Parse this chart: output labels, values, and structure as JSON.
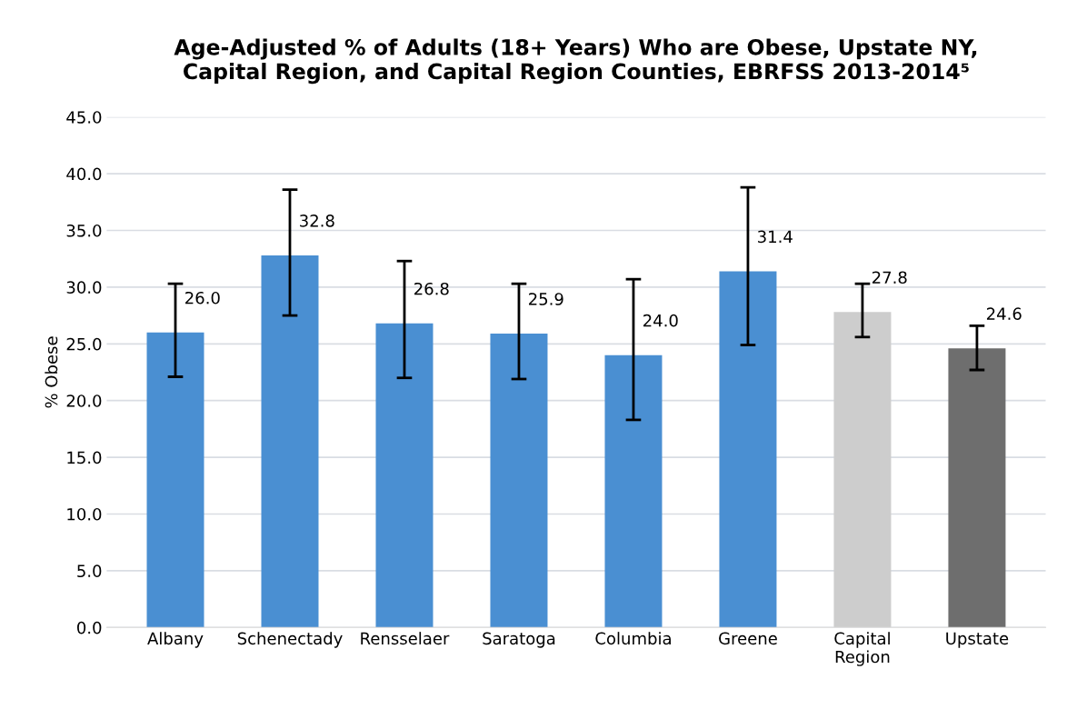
{
  "chart_data": {
    "type": "bar",
    "title": "Age-Adjusted % of Adults (18+ Years) Who are Obese, Upstate NY,\nCapital Region, and Capital Region Counties, EBRFSS 2013-2014⁵",
    "ylabel": "% Obese",
    "categories": [
      "Albany",
      "Schenectady",
      "Rensselaer",
      "Saratoga",
      "Columbia",
      "Greene",
      "Capital\nRegion",
      "Upstate"
    ],
    "values": [
      26.0,
      32.8,
      26.8,
      25.9,
      24.0,
      31.4,
      27.8,
      24.6
    ],
    "colors": [
      "#4a8fd2",
      "#4a8fd2",
      "#4a8fd2",
      "#4a8fd2",
      "#4a8fd2",
      "#4a8fd2",
      "#cdcdcd",
      "#6e6e6e"
    ],
    "errors": [
      [
        22.1,
        30.3
      ],
      [
        27.5,
        38.6
      ],
      [
        22.0,
        32.3
      ],
      [
        21.9,
        30.3
      ],
      [
        18.3,
        30.7
      ],
      [
        24.9,
        38.8
      ],
      [
        25.6,
        30.3
      ],
      [
        22.7,
        26.6
      ]
    ],
    "value_labels": [
      "26.0",
      "32.8",
      "26.8",
      "25.9",
      "24.0",
      "31.4",
      "27.8",
      "24.6"
    ],
    "ylim": [
      0,
      45
    ],
    "yticks": [
      {
        "value": 0,
        "label": "0.0"
      },
      {
        "value": 5,
        "label": "5.0"
      },
      {
        "value": 10,
        "label": "10.0"
      },
      {
        "value": 15,
        "label": "15.0"
      },
      {
        "value": 20,
        "label": "20.0"
      },
      {
        "value": 25,
        "label": "25.0"
      },
      {
        "value": 30,
        "label": "30.0"
      },
      {
        "value": 35,
        "label": "35.0"
      },
      {
        "value": 40,
        "label": "40.0"
      },
      {
        "value": 45,
        "label": "45.0"
      }
    ],
    "grid": "y",
    "legend": false
  }
}
